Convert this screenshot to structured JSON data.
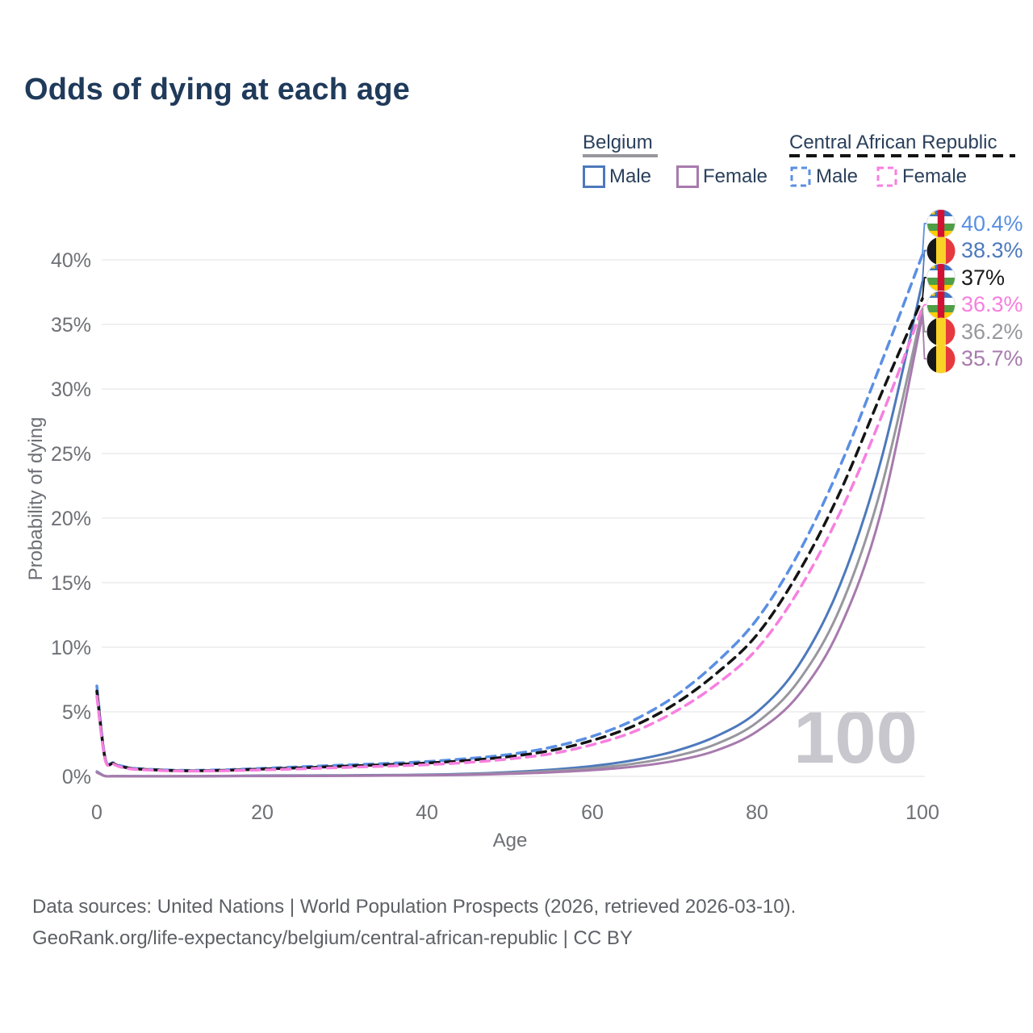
{
  "title": "Odds of dying at each age",
  "legend": {
    "belgium": {
      "label": "Belgium",
      "male": "Male",
      "female": "Female"
    },
    "car": {
      "label": "Central African Republic",
      "male": "Male",
      "female": "Female"
    }
  },
  "axes": {
    "y_title": "Probability of dying",
    "x_title": "Age",
    "yticks": [
      "0%",
      "5%",
      "10%",
      "15%",
      "20%",
      "25%",
      "30%",
      "35%",
      "40%"
    ],
    "xticks": [
      "0",
      "20",
      "40",
      "60",
      "80",
      "100"
    ]
  },
  "watermark": "100",
  "end_labels": [
    {
      "text": "40.4%",
      "series": "car_male",
      "flag": "car",
      "color": "#5a8fe3"
    },
    {
      "text": "38.3%",
      "series": "bel_male",
      "flag": "belgium",
      "color": "#4d79bc"
    },
    {
      "text": "37%",
      "series": "car_total",
      "flag": "car",
      "color": "#1a1a1a"
    },
    {
      "text": "36.3%",
      "series": "car_female",
      "flag": "car",
      "color": "#f77fdf"
    },
    {
      "text": "36.2%",
      "series": "bel_total",
      "flag": "belgium",
      "color": "#97979d"
    },
    {
      "text": "35.7%",
      "series": "bel_female",
      "flag": "belgium",
      "color": "#a77aad"
    }
  ],
  "footer": {
    "line1": "Data sources: United Nations | World Population Prospects (2026, retrieved 2026-03-10).",
    "line2": "GeoRank.org/life-expectancy/belgium/central-african-republic | CC BY"
  },
  "colors": {
    "background": "#ffffff",
    "title_text": "#1f3a5a",
    "axis_text": "#6e7076",
    "gridline": "#ebebee",
    "watermark": "#c7c7cd",
    "belgium_male": "#4d79bc",
    "belgium_female": "#a77aad",
    "belgium_total": "#97979d",
    "car_male": "#5a8fe3",
    "car_female": "#f77fdf",
    "car_total": "#141414"
  },
  "chart_data": {
    "type": "line",
    "title": "Odds of dying at each age",
    "xlabel": "Age",
    "ylabel": "Probability of dying",
    "xlim": [
      0,
      100
    ],
    "ylim": [
      0,
      40
    ],
    "ytick_step": 5,
    "grid": "horizontal",
    "legend_position": "top-right",
    "series": [
      {
        "id": "bel_male",
        "name": "Belgium Male",
        "country": "Belgium",
        "sex": "male",
        "style": "solid",
        "color": "#4d79bc",
        "end_value_pct": 38.3,
        "points": [
          [
            0,
            0.38
          ],
          [
            1,
            0.03
          ],
          [
            2,
            0.02
          ],
          [
            5,
            0.01
          ],
          [
            10,
            0.01
          ],
          [
            15,
            0.03
          ],
          [
            20,
            0.06
          ],
          [
            25,
            0.07
          ],
          [
            30,
            0.08
          ],
          [
            35,
            0.1
          ],
          [
            40,
            0.13
          ],
          [
            45,
            0.2
          ],
          [
            50,
            0.33
          ],
          [
            55,
            0.52
          ],
          [
            60,
            0.8
          ],
          [
            65,
            1.25
          ],
          [
            70,
            1.95
          ],
          [
            75,
            3.1
          ],
          [
            80,
            5.0
          ],
          [
            85,
            8.6
          ],
          [
            90,
            14.8
          ],
          [
            95,
            24.5
          ],
          [
            100,
            38.3
          ]
        ]
      },
      {
        "id": "bel_total",
        "name": "Belgium Both sexes",
        "country": "Belgium",
        "sex": "total",
        "style": "solid",
        "color": "#97979d",
        "end_value_pct": 36.2,
        "points": [
          [
            0,
            0.34
          ],
          [
            1,
            0.025
          ],
          [
            2,
            0.018
          ],
          [
            5,
            0.009
          ],
          [
            10,
            0.009
          ],
          [
            15,
            0.02
          ],
          [
            20,
            0.04
          ],
          [
            25,
            0.05
          ],
          [
            30,
            0.06
          ],
          [
            35,
            0.08
          ],
          [
            40,
            0.1
          ],
          [
            45,
            0.16
          ],
          [
            50,
            0.26
          ],
          [
            55,
            0.41
          ],
          [
            60,
            0.63
          ],
          [
            65,
            0.98
          ],
          [
            70,
            1.55
          ],
          [
            75,
            2.5
          ],
          [
            80,
            4.2
          ],
          [
            85,
            7.4
          ],
          [
            90,
            13.0
          ],
          [
            95,
            22.3
          ],
          [
            100,
            36.2
          ]
        ]
      },
      {
        "id": "bel_female",
        "name": "Belgium Female",
        "country": "Belgium",
        "sex": "female",
        "style": "solid",
        "color": "#a77aad",
        "end_value_pct": 35.7,
        "points": [
          [
            0,
            0.3
          ],
          [
            1,
            0.02
          ],
          [
            2,
            0.015
          ],
          [
            5,
            0.008
          ],
          [
            10,
            0.008
          ],
          [
            15,
            0.015
          ],
          [
            20,
            0.025
          ],
          [
            25,
            0.03
          ],
          [
            30,
            0.04
          ],
          [
            35,
            0.06
          ],
          [
            40,
            0.08
          ],
          [
            45,
            0.12
          ],
          [
            50,
            0.2
          ],
          [
            55,
            0.31
          ],
          [
            60,
            0.48
          ],
          [
            65,
            0.75
          ],
          [
            70,
            1.2
          ],
          [
            75,
            2.0
          ],
          [
            80,
            3.5
          ],
          [
            85,
            6.3
          ],
          [
            90,
            11.5
          ],
          [
            95,
            20.5
          ],
          [
            100,
            35.7
          ]
        ]
      },
      {
        "id": "car_male",
        "name": "Central African Republic Male",
        "country": "Central African Republic",
        "sex": "male",
        "style": "dashed",
        "color": "#5a8fe3",
        "end_value_pct": 40.4,
        "points": [
          [
            0,
            7.0
          ],
          [
            1,
            1.45
          ],
          [
            2,
            1.05
          ],
          [
            3,
            0.8
          ],
          [
            5,
            0.6
          ],
          [
            10,
            0.47
          ],
          [
            15,
            0.5
          ],
          [
            20,
            0.62
          ],
          [
            25,
            0.75
          ],
          [
            30,
            0.88
          ],
          [
            35,
            1.0
          ],
          [
            40,
            1.15
          ],
          [
            45,
            1.38
          ],
          [
            50,
            1.7
          ],
          [
            55,
            2.25
          ],
          [
            60,
            3.1
          ],
          [
            65,
            4.35
          ],
          [
            70,
            6.2
          ],
          [
            75,
            8.8
          ],
          [
            80,
            12.2
          ],
          [
            85,
            17.3
          ],
          [
            90,
            24.0
          ],
          [
            95,
            32.0
          ],
          [
            100,
            40.4
          ]
        ]
      },
      {
        "id": "car_total",
        "name": "Central African Republic Both sexes",
        "country": "Central African Republic",
        "sex": "total",
        "style": "dashed",
        "color": "#141414",
        "end_value_pct": 37.0,
        "points": [
          [
            0,
            6.6
          ],
          [
            1,
            1.38
          ],
          [
            2,
            1.0
          ],
          [
            3,
            0.75
          ],
          [
            5,
            0.57
          ],
          [
            10,
            0.44
          ],
          [
            15,
            0.46
          ],
          [
            20,
            0.56
          ],
          [
            25,
            0.67
          ],
          [
            30,
            0.79
          ],
          [
            35,
            0.9
          ],
          [
            40,
            1.03
          ],
          [
            45,
            1.24
          ],
          [
            50,
            1.53
          ],
          [
            55,
            2.0
          ],
          [
            60,
            2.78
          ],
          [
            65,
            3.9
          ],
          [
            70,
            5.6
          ],
          [
            75,
            7.95
          ],
          [
            80,
            11.0
          ],
          [
            85,
            15.8
          ],
          [
            90,
            22.0
          ],
          [
            95,
            29.6
          ],
          [
            100,
            37.0
          ]
        ]
      },
      {
        "id": "car_female",
        "name": "Central African Republic Female",
        "country": "Central African Republic",
        "sex": "female",
        "style": "dashed",
        "color": "#f77fdf",
        "end_value_pct": 36.3,
        "points": [
          [
            0,
            6.2
          ],
          [
            1,
            1.3
          ],
          [
            2,
            0.95
          ],
          [
            3,
            0.7
          ],
          [
            5,
            0.53
          ],
          [
            10,
            0.41
          ],
          [
            15,
            0.43
          ],
          [
            20,
            0.5
          ],
          [
            25,
            0.59
          ],
          [
            30,
            0.69
          ],
          [
            35,
            0.79
          ],
          [
            40,
            0.9
          ],
          [
            45,
            1.08
          ],
          [
            50,
            1.35
          ],
          [
            55,
            1.75
          ],
          [
            60,
            2.45
          ],
          [
            65,
            3.45
          ],
          [
            70,
            5.0
          ],
          [
            75,
            7.1
          ],
          [
            80,
            9.9
          ],
          [
            85,
            14.4
          ],
          [
            90,
            20.4
          ],
          [
            95,
            27.8
          ],
          [
            100,
            36.3
          ]
        ]
      }
    ]
  }
}
